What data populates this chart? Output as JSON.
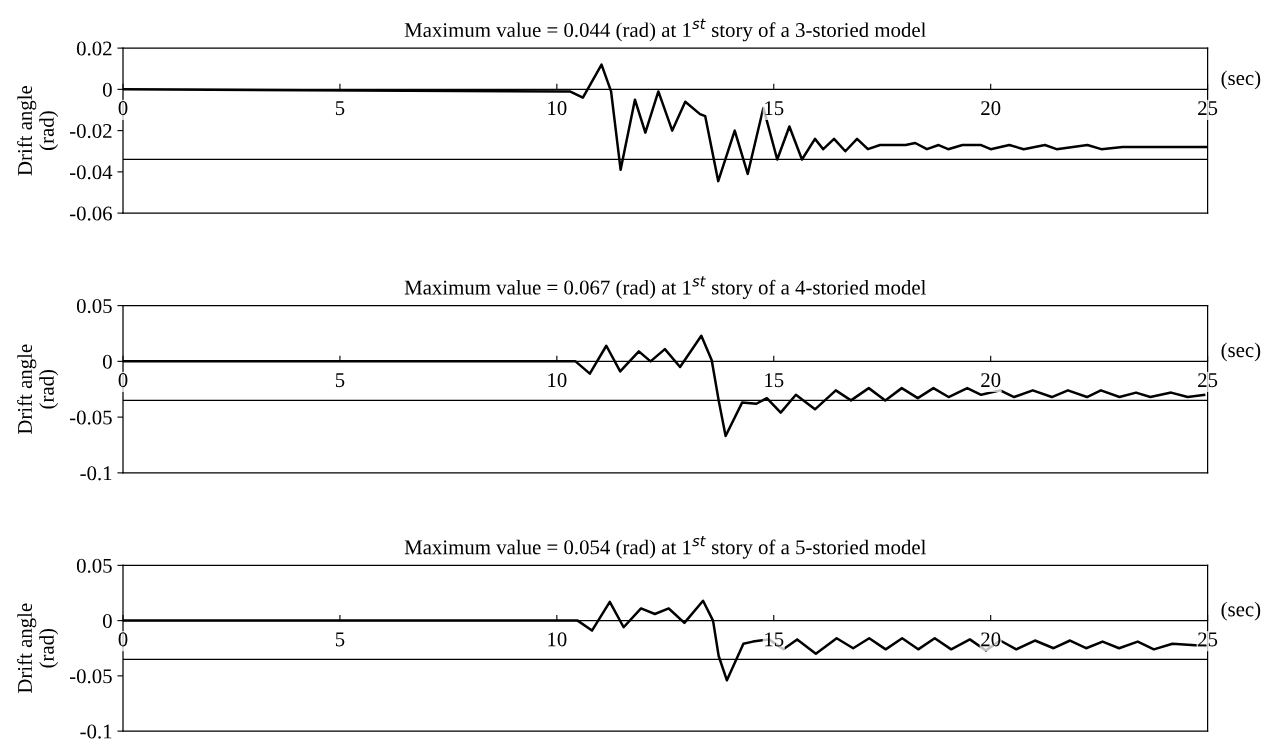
{
  "chart_data": [
    {
      "type": "line",
      "title": "Maximum value = 0.044 (rad) at 1$^{st}$ story of a 3-storied model",
      "ylabel": "Drift angle\n(rad)",
      "xlabel": "(sec)",
      "xlim": [
        0,
        25
      ],
      "xticks": [
        0,
        5,
        10,
        15,
        20,
        25
      ],
      "ylim": [
        -0.06,
        0.02
      ],
      "yticks": [
        {
          "value": 0.02,
          "label": "0.02"
        },
        0,
        {
          "value": -0.02,
          "label": "-0.02"
        },
        {
          "value": -0.04,
          "label": "-0.04"
        },
        {
          "value": -0.06,
          "label": "-0.06"
        }
      ],
      "line_style": "solid",
      "marker": "none",
      "ref_lines": [
        {
          "axis": "y",
          "value": -0.034,
          "color": "#000000"
        }
      ],
      "series": [
        {
          "color": "#000000",
          "x": [
            0,
            10.3,
            10.6,
            11.03,
            11.25,
            11.47,
            11.8,
            12.04,
            12.34,
            12.66,
            12.96,
            13.3,
            13.42,
            13.72,
            14.1,
            14.4,
            14.76,
            15.08,
            15.36,
            15.65,
            15.95,
            16.14,
            16.39,
            16.65,
            16.92,
            17.17,
            17.45,
            18.04,
            18.26,
            18.53,
            18.8,
            19.02,
            19.35,
            19.78,
            20.0,
            20.43,
            20.76,
            21.25,
            21.52,
            22.23,
            22.55,
            23.04,
            25.0
          ],
          "values": [
            0,
            -0.001,
            -0.004,
            0.012,
            -0.001,
            -0.039,
            -0.005,
            -0.021,
            -0.001,
            -0.02,
            -0.006,
            -0.012,
            -0.013,
            -0.0445,
            -0.02,
            -0.041,
            -0.009,
            -0.034,
            -0.018,
            -0.034,
            -0.024,
            -0.029,
            -0.024,
            -0.03,
            -0.024,
            -0.029,
            -0.027,
            -0.027,
            -0.026,
            -0.029,
            -0.027,
            -0.029,
            -0.027,
            -0.027,
            -0.029,
            -0.027,
            -0.029,
            -0.027,
            -0.029,
            -0.027,
            -0.029,
            -0.028,
            -0.028
          ]
        }
      ]
    },
    {
      "type": "line",
      "title": "Maximum value = 0.067 (rad) at 1$^{st}$ story of a 4-storied model",
      "ylabel": "Drift angle\n(rad)",
      "xlabel": "(sec)",
      "xlim": [
        0,
        25
      ],
      "xticks": [
        0,
        5,
        10,
        15,
        20,
        25
      ],
      "ylim": [
        -0.1,
        0.05
      ],
      "yticks": [
        {
          "value": 0.05,
          "label": "0.05"
        },
        0,
        {
          "value": -0.05,
          "label": "-0.05"
        },
        {
          "value": -0.1,
          "label": "-0.1"
        }
      ],
      "line_style": "solid",
      "marker": "none",
      "ref_lines": [
        {
          "axis": "y",
          "value": -0.035,
          "color": "#000000"
        }
      ],
      "series": [
        {
          "color": "#000000",
          "x": [
            0,
            10.43,
            10.76,
            11.14,
            11.46,
            11.89,
            12.16,
            12.49,
            12.84,
            13.33,
            13.57,
            13.73,
            13.89,
            14.27,
            14.6,
            14.84,
            15.16,
            15.51,
            15.95,
            16.43,
            16.78,
            17.19,
            17.57,
            17.95,
            18.32,
            18.68,
            19.03,
            19.46,
            19.78,
            20.22,
            20.54,
            20.97,
            21.41,
            21.78,
            22.22,
            22.54,
            22.97,
            23.35,
            23.68,
            24.16,
            24.54,
            24.92
          ],
          "values": [
            0,
            0,
            -0.011,
            0.014,
            -0.009,
            0.009,
            0,
            0.011,
            -0.005,
            0.023,
            0.001,
            -0.035,
            -0.067,
            -0.037,
            -0.038,
            -0.033,
            -0.046,
            -0.03,
            -0.043,
            -0.026,
            -0.035,
            -0.024,
            -0.035,
            -0.024,
            -0.033,
            -0.024,
            -0.032,
            -0.024,
            -0.03,
            -0.026,
            -0.032,
            -0.026,
            -0.032,
            -0.026,
            -0.032,
            -0.026,
            -0.032,
            -0.028,
            -0.032,
            -0.028,
            -0.032,
            -0.03
          ]
        }
      ]
    },
    {
      "type": "line",
      "title": "Maximum value = 0.054 (rad) at 1$^{st}$ story of a 5-storied model",
      "ylabel": "Drift angle\n(rad)",
      "xlabel": "(sec)",
      "xlim": [
        0,
        25
      ],
      "xticks": [
        0,
        5,
        10,
        15,
        20,
        25
      ],
      "ylim": [
        -0.1,
        0.05
      ],
      "yticks": [
        {
          "value": 0.05,
          "label": "0.05"
        },
        0,
        {
          "value": -0.05,
          "label": "-0.05"
        },
        {
          "value": -0.1,
          "label": "-0.1"
        }
      ],
      "line_style": "solid",
      "marker": "none",
      "ref_lines": [
        {
          "axis": "y",
          "value": -0.035,
          "color": "#000000"
        }
      ],
      "series": [
        {
          "color": "#000000",
          "x": [
            0,
            10.48,
            10.81,
            11.22,
            11.54,
            11.94,
            12.26,
            12.58,
            12.94,
            13.37,
            13.6,
            13.73,
            13.92,
            14.3,
            14.52,
            14.89,
            15.22,
            15.54,
            15.97,
            16.45,
            16.83,
            17.2,
            17.58,
            17.96,
            18.33,
            18.71,
            19.09,
            19.52,
            19.89,
            20.22,
            20.59,
            21.02,
            21.45,
            21.83,
            22.2,
            22.58,
            22.96,
            23.39,
            23.76,
            24.19,
            24.95
          ],
          "values": [
            0,
            0,
            -0.009,
            0.017,
            -0.006,
            0.011,
            0.006,
            0.011,
            -0.002,
            0.018,
            0,
            -0.032,
            -0.054,
            -0.021,
            -0.019,
            -0.017,
            -0.026,
            -0.017,
            -0.03,
            -0.016,
            -0.025,
            -0.016,
            -0.026,
            -0.016,
            -0.026,
            -0.016,
            -0.026,
            -0.017,
            -0.027,
            -0.018,
            -0.026,
            -0.018,
            -0.025,
            -0.018,
            -0.025,
            -0.019,
            -0.025,
            -0.019,
            -0.026,
            -0.021,
            -0.023
          ]
        }
      ]
    }
  ]
}
